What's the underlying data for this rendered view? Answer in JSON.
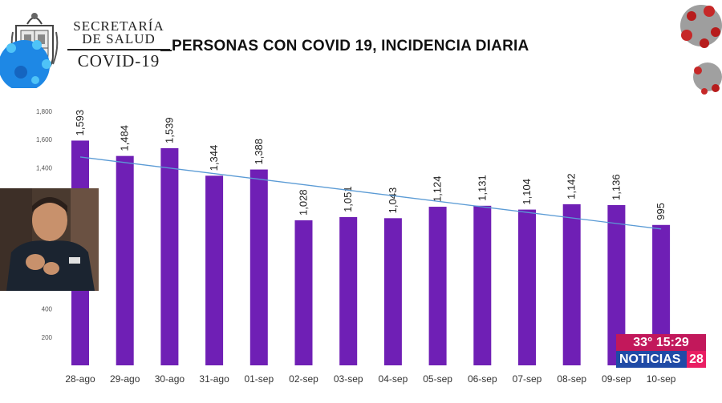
{
  "header": {
    "ministry_line1": "SECRETARÍA",
    "ministry_line2": "DE SALUD",
    "ministry_line3": "COVID-19",
    "title": "PERSONAS CON COVID 19, INCIDENCIA DIARIA"
  },
  "overlay": {
    "temperature_time": "33° 15:29",
    "channel_name": "NOTICIAS",
    "channel_number": "28"
  },
  "colors": {
    "bar": "#6f1fb5",
    "trendline": "#5b9bd5",
    "badge_top": "#c2185b",
    "badge_bottom": "#1f4aa6"
  },
  "chart_data": {
    "type": "bar",
    "title": "PERSONAS CON COVID 19, INCIDENCIA DIARIA",
    "categories": [
      "28-ago",
      "29-ago",
      "30-ago",
      "31-ago",
      "01-sep",
      "02-sep",
      "03-sep",
      "04-sep",
      "05-sep",
      "06-sep",
      "07-sep",
      "08-sep",
      "09-sep",
      "10-sep"
    ],
    "values": [
      1593,
      1484,
      1539,
      1344,
      1388,
      1028,
      1051,
      1043,
      1124,
      1131,
      1104,
      1142,
      1136,
      995
    ],
    "value_labels": [
      "1,593",
      "1,484",
      "1,539",
      "1,344",
      "1,388",
      "1,028",
      "1,051",
      "1,043",
      "1,124",
      "1,131",
      "1,104",
      "1,142",
      "1,136",
      "995"
    ],
    "y_ticks": [
      200,
      400,
      1400,
      1600,
      1800
    ],
    "y_tick_labels": [
      "200",
      "400",
      "1,400",
      "1,600",
      "1,800"
    ],
    "ylim": [
      0,
      1800
    ],
    "trendline": "linear",
    "grid": false,
    "legend": "none"
  }
}
